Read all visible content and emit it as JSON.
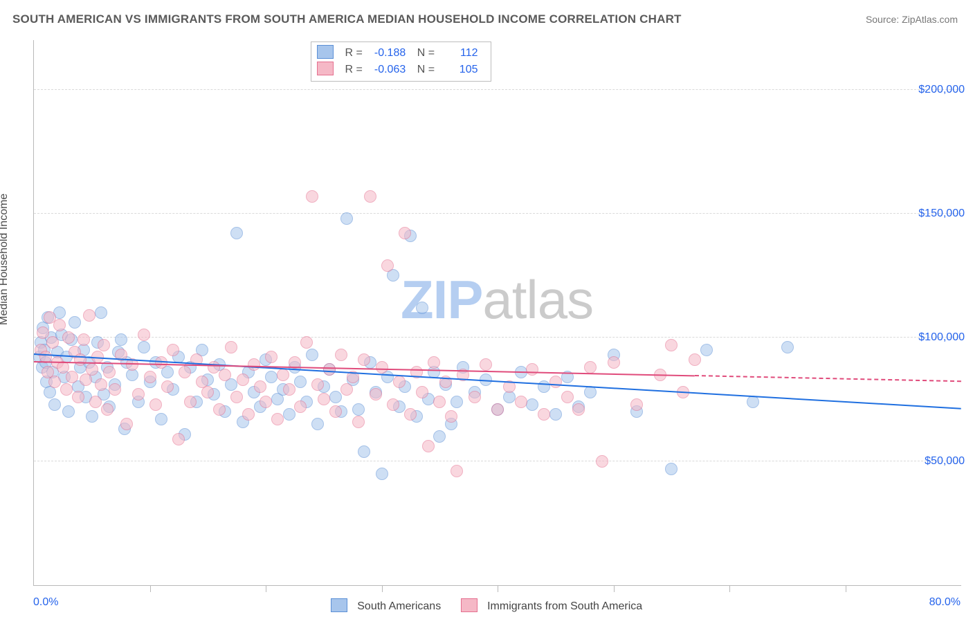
{
  "title": "SOUTH AMERICAN VS IMMIGRANTS FROM SOUTH AMERICA MEDIAN HOUSEHOLD INCOME CORRELATION CHART",
  "source_label": "Source: ZipAtlas.com",
  "watermark": {
    "zip": "ZIP",
    "atlas": "atlas"
  },
  "ylabel": "Median Household Income",
  "chart": {
    "type": "scatter",
    "xlim": [
      0,
      80
    ],
    "ylim": [
      0,
      220000
    ],
    "x_tick_step_pct": 12.5,
    "x_label_min": "0.0%",
    "x_label_max": "80.0%",
    "y_ticks": [
      50000,
      100000,
      150000,
      200000
    ],
    "y_tick_labels": [
      "$50,000",
      "$100,000",
      "$150,000",
      "$200,000"
    ],
    "grid_color": "#d9d9d9",
    "axis_color": "#b9b9b9",
    "background_color": "#ffffff",
    "point_radius": 8,
    "point_opacity": 0.55,
    "label_color_blue": "#2563eb",
    "series": [
      {
        "key": "sa",
        "label": "South Americans",
        "fill": "#a7c5ec",
        "stroke": "#5b8fd6",
        "trend": {
          "color": "#1f6fe0",
          "y_at_xmin": 93000,
          "y_at_xmax": 71000,
          "x_solid_end": 80,
          "dash_after": false
        },
        "R": "-0.188",
        "N": "112"
      },
      {
        "key": "im",
        "label": "Immigrants from South America",
        "fill": "#f5b8c6",
        "stroke": "#e56f8f",
        "trend": {
          "color": "#e04b7b",
          "y_at_xmin": 90000,
          "y_at_xmax": 82000,
          "x_solid_end": 57,
          "dash_after": true
        },
        "R": "-0.063",
        "N": "105"
      }
    ],
    "points": {
      "sa": [
        [
          0.5,
          92000
        ],
        [
          0.6,
          98000
        ],
        [
          0.7,
          88000
        ],
        [
          0.8,
          104000
        ],
        [
          0.9,
          95000
        ],
        [
          1.0,
          90000
        ],
        [
          1.1,
          82000
        ],
        [
          1.2,
          108000
        ],
        [
          1.4,
          78000
        ],
        [
          1.5,
          100000
        ],
        [
          1.6,
          86000
        ],
        [
          1.8,
          73000
        ],
        [
          2.0,
          94000
        ],
        [
          2.2,
          110000
        ],
        [
          2.4,
          101000
        ],
        [
          2.6,
          84000
        ],
        [
          2.8,
          92000
        ],
        [
          3.0,
          70000
        ],
        [
          3.2,
          99000
        ],
        [
          3.5,
          106000
        ],
        [
          3.8,
          80000
        ],
        [
          4.0,
          88000
        ],
        [
          4.3,
          95000
        ],
        [
          4.5,
          76000
        ],
        [
          4.8,
          90000
        ],
        [
          5.0,
          68000
        ],
        [
          5.3,
          84000
        ],
        [
          5.5,
          98000
        ],
        [
          5.8,
          110000
        ],
        [
          6.0,
          77000
        ],
        [
          6.3,
          88000
        ],
        [
          6.5,
          72000
        ],
        [
          7.0,
          81000
        ],
        [
          7.3,
          94000
        ],
        [
          7.5,
          99000
        ],
        [
          7.8,
          63000
        ],
        [
          8.0,
          90000
        ],
        [
          8.5,
          85000
        ],
        [
          9.0,
          74000
        ],
        [
          9.5,
          96000
        ],
        [
          10.0,
          82000
        ],
        [
          10.5,
          90000
        ],
        [
          11.0,
          67000
        ],
        [
          11.5,
          86000
        ],
        [
          12.0,
          79000
        ],
        [
          12.5,
          92000
        ],
        [
          13.0,
          61000
        ],
        [
          13.5,
          88000
        ],
        [
          14.0,
          74000
        ],
        [
          14.5,
          95000
        ],
        [
          15.0,
          83000
        ],
        [
          15.5,
          77000
        ],
        [
          16.0,
          89000
        ],
        [
          16.5,
          70000
        ],
        [
          17.0,
          81000
        ],
        [
          17.5,
          142000
        ],
        [
          18.0,
          66000
        ],
        [
          18.5,
          86000
        ],
        [
          19.0,
          78000
        ],
        [
          19.5,
          72000
        ],
        [
          20.0,
          91000
        ],
        [
          20.5,
          84000
        ],
        [
          21.0,
          75000
        ],
        [
          21.5,
          79000
        ],
        [
          22.0,
          69000
        ],
        [
          22.5,
          88000
        ],
        [
          23.0,
          82000
        ],
        [
          23.5,
          74000
        ],
        [
          24.0,
          93000
        ],
        [
          24.5,
          65000
        ],
        [
          25.0,
          80000
        ],
        [
          25.5,
          87000
        ],
        [
          26.0,
          76000
        ],
        [
          26.5,
          70000
        ],
        [
          27.0,
          148000
        ],
        [
          27.5,
          83000
        ],
        [
          28.0,
          71000
        ],
        [
          28.5,
          54000
        ],
        [
          29.0,
          90000
        ],
        [
          29.5,
          78000
        ],
        [
          30.0,
          45000
        ],
        [
          30.5,
          84000
        ],
        [
          31.0,
          125000
        ],
        [
          31.5,
          72000
        ],
        [
          32.0,
          80000
        ],
        [
          32.5,
          141000
        ],
        [
          33.0,
          68000
        ],
        [
          33.5,
          112000
        ],
        [
          34.0,
          75000
        ],
        [
          34.5,
          86000
        ],
        [
          35.0,
          60000
        ],
        [
          35.5,
          81000
        ],
        [
          36.0,
          65000
        ],
        [
          36.5,
          74000
        ],
        [
          37.0,
          88000
        ],
        [
          38.0,
          78000
        ],
        [
          39.0,
          83000
        ],
        [
          40.0,
          71000
        ],
        [
          41.0,
          76000
        ],
        [
          42.0,
          86000
        ],
        [
          43.0,
          73000
        ],
        [
          44.0,
          80000
        ],
        [
          45.0,
          69000
        ],
        [
          46.0,
          84000
        ],
        [
          47.0,
          72000
        ],
        [
          48.0,
          78000
        ],
        [
          50.0,
          93000
        ],
        [
          52.0,
          70000
        ],
        [
          55.0,
          47000
        ],
        [
          58.0,
          95000
        ],
        [
          62.0,
          74000
        ],
        [
          65.0,
          96000
        ]
      ],
      "im": [
        [
          0.6,
          95000
        ],
        [
          0.8,
          102000
        ],
        [
          1.0,
          92000
        ],
        [
          1.2,
          86000
        ],
        [
          1.4,
          108000
        ],
        [
          1.6,
          98000
        ],
        [
          1.8,
          82000
        ],
        [
          2.0,
          90000
        ],
        [
          2.2,
          105000
        ],
        [
          2.5,
          88000
        ],
        [
          2.8,
          79000
        ],
        [
          3.0,
          100000
        ],
        [
          3.3,
          84000
        ],
        [
          3.5,
          94000
        ],
        [
          3.8,
          76000
        ],
        [
          4.0,
          91000
        ],
        [
          4.3,
          99000
        ],
        [
          4.5,
          83000
        ],
        [
          4.8,
          109000
        ],
        [
          5.0,
          87000
        ],
        [
          5.3,
          74000
        ],
        [
          5.5,
          92000
        ],
        [
          5.8,
          81000
        ],
        [
          6.0,
          97000
        ],
        [
          6.3,
          71000
        ],
        [
          6.5,
          86000
        ],
        [
          7.0,
          79000
        ],
        [
          7.5,
          93000
        ],
        [
          8.0,
          65000
        ],
        [
          8.5,
          89000
        ],
        [
          9.0,
          77000
        ],
        [
          9.5,
          101000
        ],
        [
          10.0,
          84000
        ],
        [
          10.5,
          73000
        ],
        [
          11.0,
          90000
        ],
        [
          11.5,
          80000
        ],
        [
          12.0,
          95000
        ],
        [
          12.5,
          59000
        ],
        [
          13.0,
          86000
        ],
        [
          13.5,
          74000
        ],
        [
          14.0,
          91000
        ],
        [
          14.5,
          82000
        ],
        [
          15.0,
          78000
        ],
        [
          15.5,
          88000
        ],
        [
          16.0,
          71000
        ],
        [
          16.5,
          85000
        ],
        [
          17.0,
          96000
        ],
        [
          17.5,
          76000
        ],
        [
          18.0,
          83000
        ],
        [
          18.5,
          69000
        ],
        [
          19.0,
          89000
        ],
        [
          19.5,
          80000
        ],
        [
          20.0,
          74000
        ],
        [
          20.5,
          92000
        ],
        [
          21.0,
          67000
        ],
        [
          21.5,
          85000
        ],
        [
          22.0,
          79000
        ],
        [
          22.5,
          90000
        ],
        [
          23.0,
          72000
        ],
        [
          23.5,
          98000
        ],
        [
          24.0,
          157000
        ],
        [
          24.5,
          81000
        ],
        [
          25.0,
          75000
        ],
        [
          25.5,
          87000
        ],
        [
          26.0,
          70000
        ],
        [
          26.5,
          93000
        ],
        [
          27.0,
          79000
        ],
        [
          27.5,
          84000
        ],
        [
          28.0,
          66000
        ],
        [
          28.5,
          91000
        ],
        [
          29.0,
          157000
        ],
        [
          29.5,
          77000
        ],
        [
          30.0,
          88000
        ],
        [
          30.5,
          129000
        ],
        [
          31.0,
          73000
        ],
        [
          31.5,
          82000
        ],
        [
          32.0,
          142000
        ],
        [
          32.5,
          69000
        ],
        [
          33.0,
          86000
        ],
        [
          33.5,
          78000
        ],
        [
          34.0,
          56000
        ],
        [
          34.5,
          90000
        ],
        [
          35.0,
          74000
        ],
        [
          35.5,
          82000
        ],
        [
          36.0,
          68000
        ],
        [
          36.5,
          46000
        ],
        [
          37.0,
          85000
        ],
        [
          38.0,
          76000
        ],
        [
          39.0,
          89000
        ],
        [
          40.0,
          71000
        ],
        [
          41.0,
          80000
        ],
        [
          42.0,
          74000
        ],
        [
          43.0,
          87000
        ],
        [
          44.0,
          69000
        ],
        [
          45.0,
          82000
        ],
        [
          46.0,
          76000
        ],
        [
          47.0,
          71000
        ],
        [
          48.0,
          88000
        ],
        [
          50.0,
          90000
        ],
        [
          52.0,
          73000
        ],
        [
          54.0,
          85000
        ],
        [
          55.0,
          97000
        ],
        [
          56.0,
          78000
        ],
        [
          57.0,
          91000
        ],
        [
          49.0,
          50000
        ]
      ]
    }
  }
}
